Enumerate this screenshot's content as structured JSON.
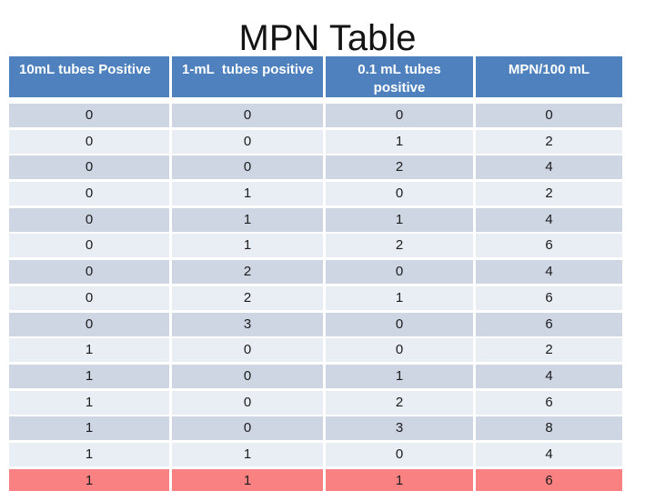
{
  "slide": {
    "title": "MPN Table"
  },
  "table": {
    "columns": [
      {
        "label": "10mL tubes Positive",
        "align": "left"
      },
      {
        "label": "1-mL  tubes positive",
        "align": "left"
      },
      {
        "label": "0.1 mL tubes\npositive",
        "align": "center"
      },
      {
        "label": "MPN/100 mL",
        "align": "center"
      }
    ],
    "rows": [
      [
        "0",
        "0",
        "0",
        "0"
      ],
      [
        "0",
        "0",
        "1",
        "2"
      ],
      [
        "0",
        "0",
        "2",
        "4"
      ],
      [
        "0",
        "1",
        "0",
        "2"
      ],
      [
        "0",
        "1",
        "1",
        "4"
      ],
      [
        "0",
        "1",
        "2",
        "6"
      ],
      [
        "0",
        "2",
        "0",
        "4"
      ],
      [
        "0",
        "2",
        "1",
        "6"
      ],
      [
        "0",
        "3",
        "0",
        "6"
      ],
      [
        "1",
        "0",
        "0",
        "2"
      ],
      [
        "1",
        "0",
        "1",
        "4"
      ],
      [
        "1",
        "0",
        "2",
        "6"
      ],
      [
        "1",
        "0",
        "3",
        "8"
      ],
      [
        "1",
        "1",
        "0",
        "4"
      ],
      [
        "1",
        "1",
        "1",
        "6"
      ]
    ],
    "highlighted_row_index": 14,
    "colors": {
      "header_bg": "#4e81bd",
      "header_text": "#ffffff",
      "band_dark": "#ced5e3",
      "band_light": "#e9edf4",
      "highlight_bg": "#fa8181",
      "cell_text": "#1c1c1c",
      "title_text": "#141414"
    }
  }
}
